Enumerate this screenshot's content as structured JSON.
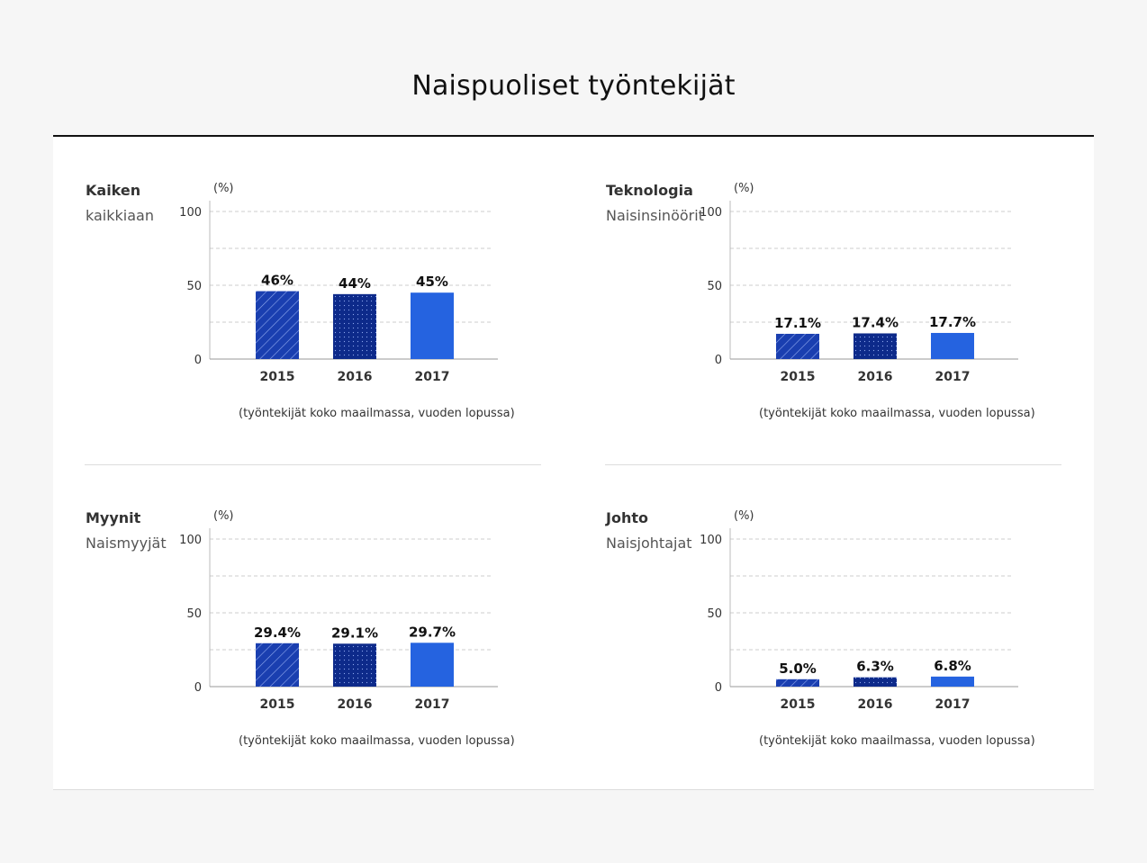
{
  "title": "Naispuoliset työntekijät",
  "colors": {
    "bar2015": "#1a3fb0",
    "bar2016": "#0d2a8a",
    "bar2017": "#2563e0",
    "grid": "#cccccc"
  },
  "chart_data": [
    {
      "type": "bar",
      "title": "Kaiken",
      "subtitle": "kaikkiaan",
      "unit": "(%)",
      "ylabel": "",
      "ylim": [
        0,
        100
      ],
      "yticks": [
        "0",
        "50",
        "100"
      ],
      "categories": [
        "2015",
        "2016",
        "2017"
      ],
      "values": [
        46,
        44,
        45
      ],
      "labels": [
        "46%",
        "44%",
        "45%"
      ],
      "note": "(työntekijät koko maailmassa, vuoden lopussa)"
    },
    {
      "type": "bar",
      "title": "Teknologia",
      "subtitle": "Naisinsinöörit",
      "unit": "(%)",
      "ylabel": "",
      "ylim": [
        0,
        100
      ],
      "yticks": [
        "0",
        "50",
        "100"
      ],
      "categories": [
        "2015",
        "2016",
        "2017"
      ],
      "values": [
        17.1,
        17.4,
        17.7
      ],
      "labels": [
        "17.1%",
        "17.4%",
        "17.7%"
      ],
      "note": "(työntekijät koko maailmassa, vuoden lopussa)"
    },
    {
      "type": "bar",
      "title": "Myynit",
      "subtitle": "Naismyyjät",
      "unit": "(%)",
      "ylabel": "",
      "ylim": [
        0,
        100
      ],
      "yticks": [
        "0",
        "50",
        "100"
      ],
      "categories": [
        "2015",
        "2016",
        "2017"
      ],
      "values": [
        29.4,
        29.1,
        29.7
      ],
      "labels": [
        "29.4%",
        "29.1%",
        "29.7%"
      ],
      "note": "(työntekijät koko maailmassa, vuoden lopussa)"
    },
    {
      "type": "bar",
      "title": "Johto",
      "subtitle": "Naisjohtajat",
      "unit": "(%)",
      "ylabel": "",
      "ylim": [
        0,
        100
      ],
      "yticks": [
        "0",
        "50",
        "100"
      ],
      "categories": [
        "2015",
        "2016",
        "2017"
      ],
      "values": [
        5.0,
        6.3,
        6.8
      ],
      "labels": [
        "5.0%",
        "6.3%",
        "6.8%"
      ],
      "note": "(työntekijät koko maailmassa, vuoden lopussa)"
    }
  ]
}
